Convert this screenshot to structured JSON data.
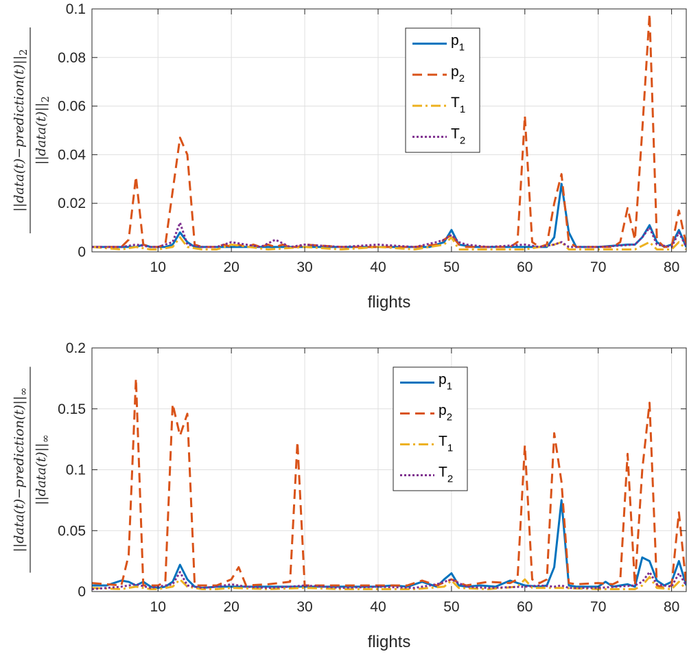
{
  "chart_data": [
    {
      "type": "line",
      "xlabel": "flights",
      "ylabel_num": "||data(t)−prediction(t)||",
      "ylabel_num_sub": "2",
      "ylabel_den": "||data(t)||",
      "ylabel_den_sub": "2",
      "xlim": [
        1,
        82
      ],
      "ylim": [
        0,
        0.1
      ],
      "xticks": [
        10,
        20,
        30,
        40,
        50,
        60,
        70,
        80
      ],
      "xtick_labels": [
        "10",
        "20",
        "30",
        "40",
        "50",
        "60",
        "70",
        "80"
      ],
      "yticks": [
        0,
        0.02,
        0.04,
        0.06,
        0.08,
        0.1
      ],
      "ytick_labels": [
        "0",
        "0.02",
        "0.04",
        "0.06",
        "0.08",
        "0.1"
      ],
      "grid": true,
      "legend_position": "top-center",
      "series": [
        {
          "name": "p",
          "sub": "1",
          "color": "#0072BD",
          "style": "solid",
          "x": [
            1,
            5,
            6,
            7,
            8,
            9,
            10,
            11,
            12,
            13,
            14,
            15,
            16,
            17,
            18,
            19,
            20,
            25,
            30,
            35,
            40,
            45,
            47,
            49,
            50,
            51,
            53,
            55,
            60,
            62,
            63,
            64,
            65,
            66,
            67,
            70,
            74,
            75,
            76,
            77,
            78,
            79,
            80,
            81,
            82
          ],
          "y": [
            0.002,
            0.002,
            0.002,
            0.002,
            0.003,
            0.002,
            0.002,
            0.002,
            0.003,
            0.008,
            0.004,
            0.002,
            0.002,
            0.002,
            0.002,
            0.002,
            0.002,
            0.002,
            0.002,
            0.002,
            0.002,
            0.002,
            0.002,
            0.004,
            0.009,
            0.003,
            0.002,
            0.002,
            0.002,
            0.002,
            0.002,
            0.006,
            0.028,
            0.008,
            0.002,
            0.002,
            0.003,
            0.003,
            0.006,
            0.011,
            0.004,
            0.002,
            0.003,
            0.009,
            0.002
          ]
        },
        {
          "name": "p",
          "sub": "2",
          "color": "#D95319",
          "style": "dashed",
          "x": [
            1,
            5,
            6,
            7,
            8,
            9,
            10,
            11,
            12,
            13,
            14,
            15,
            16,
            17,
            18,
            19,
            20,
            21,
            22,
            23,
            24,
            25,
            26,
            27,
            28,
            29,
            30,
            35,
            40,
            45,
            48,
            49,
            50,
            51,
            52,
            55,
            58,
            59,
            60,
            61,
            62,
            63,
            64,
            65,
            66,
            67,
            70,
            72,
            73,
            74,
            75,
            76,
            77,
            78,
            79,
            80,
            81,
            82
          ],
          "y": [
            0.002,
            0.002,
            0.005,
            0.031,
            0.003,
            0.002,
            0.002,
            0.003,
            0.025,
            0.047,
            0.04,
            0.003,
            0.002,
            0.002,
            0.002,
            0.003,
            0.002,
            0.003,
            0.002,
            0.003,
            0.002,
            0.003,
            0.002,
            0.003,
            0.002,
            0.002,
            0.003,
            0.002,
            0.002,
            0.002,
            0.003,
            0.005,
            0.007,
            0.003,
            0.002,
            0.002,
            0.002,
            0.004,
            0.056,
            0.004,
            0.002,
            0.003,
            0.02,
            0.032,
            0.004,
            0.002,
            0.002,
            0.002,
            0.004,
            0.018,
            0.005,
            0.05,
            0.098,
            0.005,
            0.002,
            0.002,
            0.017,
            0.003
          ]
        },
        {
          "name": "T",
          "sub": "1",
          "color": "#EDB120",
          "style": "dashdot",
          "x": [
            1,
            5,
            7,
            9,
            10,
            12,
            13,
            14,
            16,
            18,
            20,
            25,
            30,
            35,
            40,
            45,
            49,
            50,
            51,
            55,
            60,
            62,
            64,
            65,
            66,
            70,
            75,
            77,
            78,
            80,
            81,
            82
          ],
          "y": [
            0.002,
            0.001,
            0.002,
            0.001,
            0.001,
            0.002,
            0.006,
            0.002,
            0.001,
            0.001,
            0.003,
            0.001,
            0.002,
            0.001,
            0.002,
            0.001,
            0.003,
            0.006,
            0.001,
            0.001,
            0.001,
            0.002,
            0.003,
            0.004,
            0.001,
            0.001,
            0.001,
            0.004,
            0.001,
            0.001,
            0.004,
            0.001
          ]
        },
        {
          "name": "T",
          "sub": "2",
          "color": "#7E2F8E",
          "style": "dotted",
          "x": [
            1,
            5,
            7,
            9,
            10,
            12,
            13,
            14,
            16,
            18,
            20,
            22,
            24,
            26,
            28,
            30,
            35,
            40,
            45,
            48,
            49,
            50,
            51,
            52,
            55,
            60,
            62,
            64,
            65,
            66,
            70,
            75,
            76,
            77,
            78,
            80,
            81,
            82
          ],
          "y": [
            0.002,
            0.002,
            0.003,
            0.002,
            0.002,
            0.004,
            0.012,
            0.003,
            0.002,
            0.002,
            0.004,
            0.003,
            0.002,
            0.005,
            0.002,
            0.003,
            0.002,
            0.003,
            0.002,
            0.004,
            0.005,
            0.007,
            0.004,
            0.003,
            0.002,
            0.003,
            0.002,
            0.003,
            0.004,
            0.002,
            0.002,
            0.003,
            0.006,
            0.01,
            0.003,
            0.002,
            0.008,
            0.002
          ]
        }
      ]
    },
    {
      "type": "line",
      "xlabel": "flights",
      "ylabel_num": "||data(t)−prediction(t)||",
      "ylabel_num_sub": "∞",
      "ylabel_den": "||data(t)||",
      "ylabel_den_sub": "∞",
      "xlim": [
        1,
        82
      ],
      "ylim": [
        0,
        0.2
      ],
      "xticks": [
        10,
        20,
        30,
        40,
        50,
        60,
        70,
        80
      ],
      "xtick_labels": [
        "10",
        "20",
        "30",
        "40",
        "50",
        "60",
        "70",
        "80"
      ],
      "yticks": [
        0,
        0.05,
        0.1,
        0.15,
        0.2
      ],
      "ytick_labels": [
        "0",
        "0.05",
        "0.1",
        "0.15",
        "0.2"
      ],
      "grid": true,
      "legend_position": "top-center",
      "series": [
        {
          "name": "p",
          "sub": "1",
          "color": "#0072BD",
          "style": "solid",
          "x": [
            1,
            3,
            5,
            6,
            7,
            8,
            9,
            10,
            11,
            12,
            13,
            14,
            15,
            16,
            18,
            20,
            25,
            30,
            35,
            40,
            42,
            44,
            46,
            48,
            49,
            50,
            51,
            52,
            54,
            56,
            58,
            60,
            62,
            63,
            64,
            65,
            66,
            67,
            70,
            71,
            72,
            74,
            75,
            76,
            77,
            78,
            79,
            80,
            81,
            82
          ],
          "y": [
            0.005,
            0.005,
            0.009,
            0.008,
            0.005,
            0.008,
            0.004,
            0.003,
            0.004,
            0.008,
            0.022,
            0.01,
            0.004,
            0.003,
            0.004,
            0.004,
            0.004,
            0.004,
            0.004,
            0.004,
            0.005,
            0.004,
            0.008,
            0.004,
            0.01,
            0.015,
            0.005,
            0.004,
            0.005,
            0.004,
            0.009,
            0.005,
            0.004,
            0.005,
            0.02,
            0.075,
            0.005,
            0.004,
            0.004,
            0.008,
            0.004,
            0.006,
            0.004,
            0.028,
            0.025,
            0.009,
            0.005,
            0.008,
            0.025,
            0.005
          ]
        },
        {
          "name": "p",
          "sub": "2",
          "color": "#D95319",
          "style": "dashed",
          "x": [
            1,
            5,
            6,
            7,
            8,
            9,
            10,
            11,
            12,
            13,
            14,
            15,
            16,
            18,
            20,
            21,
            22,
            25,
            28,
            29,
            30,
            35,
            40,
            44,
            46,
            48,
            50,
            52,
            55,
            58,
            59,
            60,
            61,
            62,
            63,
            64,
            65,
            66,
            67,
            70,
            72,
            73,
            74,
            75,
            76,
            77,
            78,
            79,
            80,
            81,
            82
          ],
          "y": [
            0.007,
            0.005,
            0.03,
            0.175,
            0.005,
            0.005,
            0.005,
            0.008,
            0.154,
            0.128,
            0.146,
            0.005,
            0.005,
            0.005,
            0.01,
            0.02,
            0.005,
            0.006,
            0.008,
            0.123,
            0.005,
            0.005,
            0.005,
            0.005,
            0.009,
            0.005,
            0.01,
            0.005,
            0.008,
            0.007,
            0.01,
            0.12,
            0.01,
            0.007,
            0.01,
            0.13,
            0.09,
            0.007,
            0.006,
            0.007,
            0.006,
            0.009,
            0.113,
            0.005,
            0.1,
            0.155,
            0.005,
            0.003,
            0.005,
            0.065,
            0.005
          ]
        },
        {
          "name": "T",
          "sub": "1",
          "color": "#EDB120",
          "style": "dashdot",
          "x": [
            1,
            5,
            7,
            9,
            10,
            12,
            13,
            14,
            16,
            18,
            20,
            25,
            30,
            35,
            40,
            45,
            49,
            50,
            51,
            55,
            59,
            60,
            61,
            65,
            70,
            75,
            76,
            77,
            78,
            80,
            81,
            82
          ],
          "y": [
            0.003,
            0.002,
            0.004,
            0.002,
            0.002,
            0.004,
            0.01,
            0.004,
            0.002,
            0.002,
            0.003,
            0.002,
            0.003,
            0.002,
            0.002,
            0.002,
            0.004,
            0.009,
            0.003,
            0.002,
            0.004,
            0.01,
            0.003,
            0.003,
            0.002,
            0.002,
            0.005,
            0.012,
            0.003,
            0.002,
            0.008,
            0.002
          ]
        },
        {
          "name": "T",
          "sub": "2",
          "color": "#7E2F8E",
          "style": "dotted",
          "x": [
            1,
            5,
            7,
            9,
            10,
            12,
            13,
            14,
            16,
            18,
            20,
            22,
            25,
            28,
            30,
            35,
            40,
            45,
            48,
            50,
            52,
            55,
            60,
            62,
            64,
            65,
            66,
            70,
            75,
            76,
            77,
            78,
            80,
            81,
            82
          ],
          "y": [
            0.002,
            0.004,
            0.006,
            0.003,
            0.004,
            0.006,
            0.016,
            0.005,
            0.003,
            0.004,
            0.006,
            0.004,
            0.003,
            0.004,
            0.005,
            0.003,
            0.004,
            0.003,
            0.006,
            0.01,
            0.004,
            0.003,
            0.004,
            0.005,
            0.004,
            0.005,
            0.003,
            0.003,
            0.005,
            0.008,
            0.016,
            0.006,
            0.004,
            0.015,
            0.005
          ]
        }
      ]
    }
  ]
}
